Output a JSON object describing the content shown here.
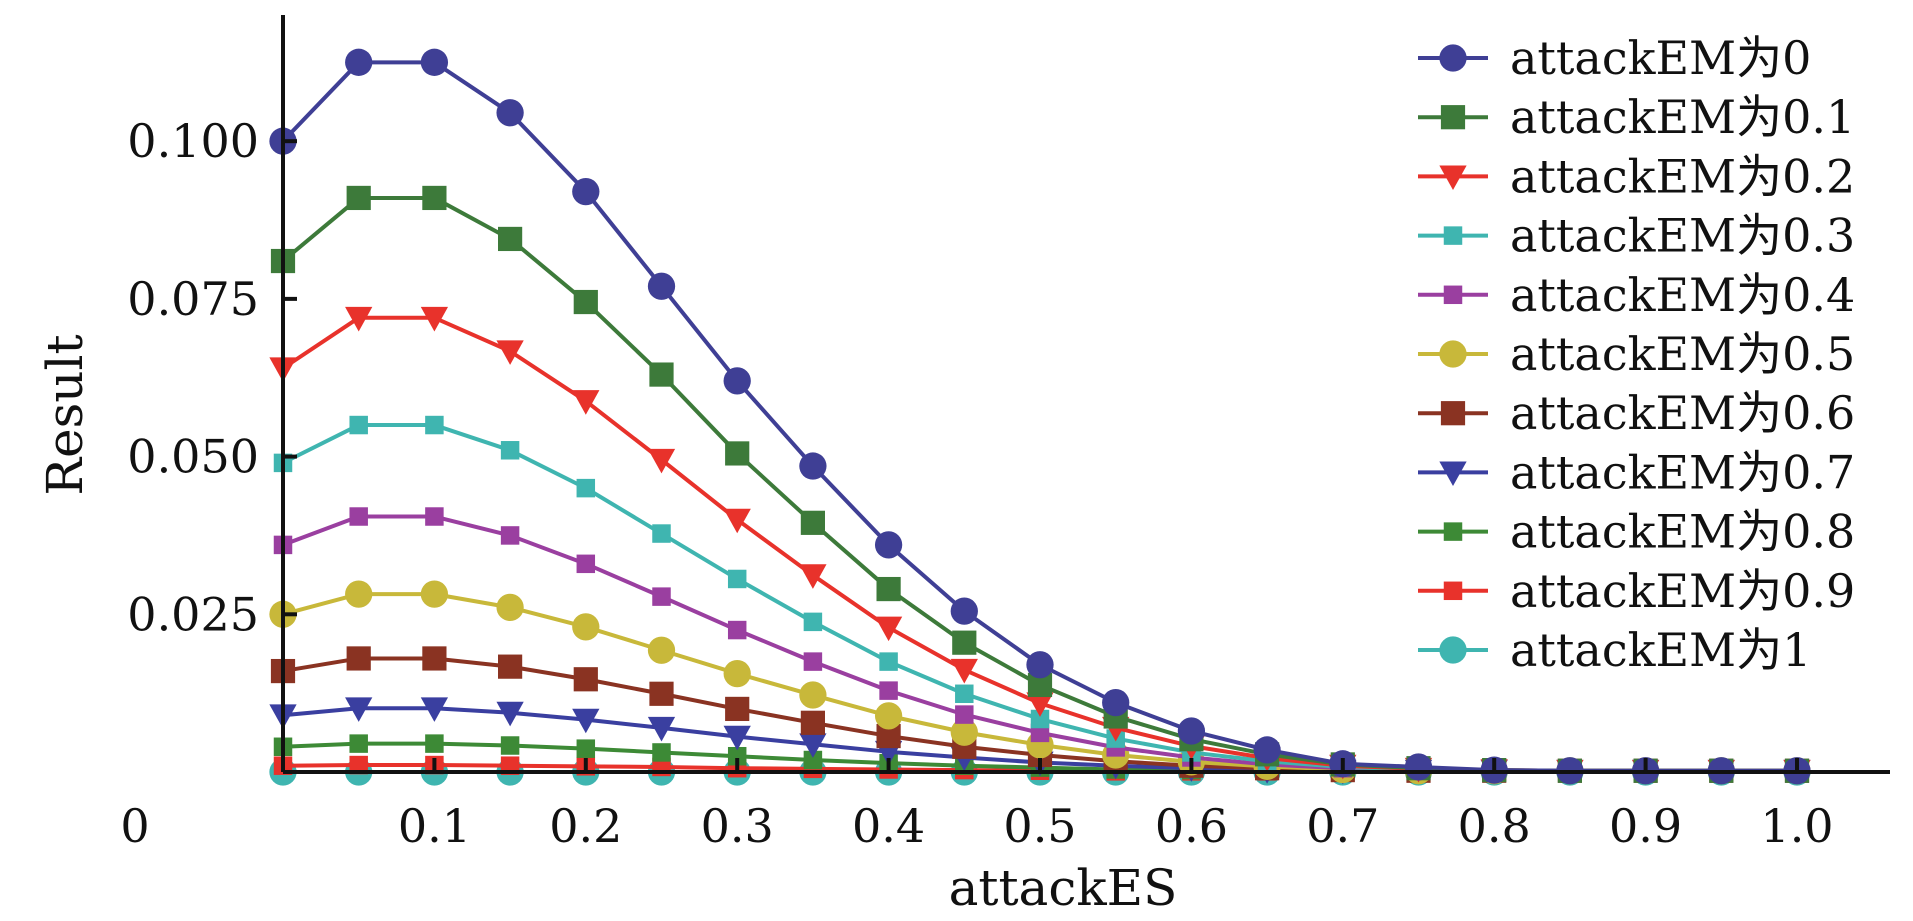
{
  "chart_data": {
    "type": "line",
    "xlabel": "attackES",
    "ylabel": "Result",
    "xlim": [
      0,
      1.05
    ],
    "ylim": [
      0,
      0.12
    ],
    "x_origin_label": "0",
    "x_ticks": [
      {
        "v": 0.1,
        "label": "0.1"
      },
      {
        "v": 0.2,
        "label": "0.2"
      },
      {
        "v": 0.3,
        "label": "0.3"
      },
      {
        "v": 0.4,
        "label": "0.4"
      },
      {
        "v": 0.5,
        "label": "0.5"
      },
      {
        "v": 0.6,
        "label": "0.6"
      },
      {
        "v": 0.7,
        "label": "0.7"
      },
      {
        "v": 0.8,
        "label": "0.8"
      },
      {
        "v": 0.9,
        "label": "0.9"
      },
      {
        "v": 1.0,
        "label": "1.0"
      }
    ],
    "y_ticks": [
      {
        "v": 0.025,
        "label": "0.025"
      },
      {
        "v": 0.05,
        "label": "0.050"
      },
      {
        "v": 0.075,
        "label": "0.075"
      },
      {
        "v": 0.1,
        "label": "0.100"
      }
    ],
    "legend_position": "top-right",
    "grid": false,
    "x": [
      0,
      0.05,
      0.1,
      0.15,
      0.2,
      0.25,
      0.3,
      0.35,
      0.4,
      0.45,
      0.5,
      0.55,
      0.6,
      0.65,
      0.7,
      0.75,
      0.8,
      0.85,
      0.9,
      0.95,
      1.0
    ],
    "series": [
      {
        "name": "attackEM为0",
        "color": "#3f3f95",
        "marker": "circle",
        "values": [
          0.1,
          0.1125,
          0.1125,
          0.1045,
          0.092,
          0.077,
          0.062,
          0.0485,
          0.036,
          0.0255,
          0.017,
          0.011,
          0.0065,
          0.0035,
          0.0013,
          0.0008,
          0.0003,
          0.0002,
          0.0002,
          0.0002,
          0.0002
        ]
      },
      {
        "name": "attackEM为0.1",
        "color": "#3d7a3a",
        "marker": "square",
        "values": [
          0.081,
          0.091,
          0.091,
          0.0845,
          0.0745,
          0.063,
          0.0505,
          0.0395,
          0.029,
          0.0205,
          0.0138,
          0.0088,
          0.0052,
          0.0028,
          0.0012,
          0.0006,
          0.0003,
          0.0002,
          0.0002,
          0.0002,
          0.0002
        ]
      },
      {
        "name": "attackEM为0.2",
        "color": "#e8322b",
        "marker": "triangle-down",
        "values": [
          0.064,
          0.072,
          0.072,
          0.0667,
          0.0588,
          0.0495,
          0.04,
          0.0312,
          0.0229,
          0.0162,
          0.0109,
          0.007,
          0.0041,
          0.0022,
          0.001,
          0.0005,
          0.0003,
          0.0002,
          0.0002,
          0.0002,
          0.0002
        ]
      },
      {
        "name": "attackEM为0.3",
        "color": "#3fb5b0",
        "marker": "square-small",
        "values": [
          0.049,
          0.055,
          0.055,
          0.051,
          0.045,
          0.0378,
          0.0306,
          0.0238,
          0.0175,
          0.0124,
          0.0084,
          0.0053,
          0.0031,
          0.0017,
          0.0008,
          0.0004,
          0.0002,
          0.0002,
          0.0002,
          0.0002,
          0.0002
        ]
      },
      {
        "name": "attackEM为0.4",
        "color": "#9a3fa0",
        "marker": "square-small",
        "values": [
          0.036,
          0.0405,
          0.0405,
          0.0375,
          0.033,
          0.0278,
          0.0225,
          0.0175,
          0.0129,
          0.0091,
          0.0062,
          0.0039,
          0.0023,
          0.0012,
          0.0006,
          0.0003,
          0.0002,
          0.0002,
          0.0002,
          0.0002,
          0.0002
        ]
      },
      {
        "name": "attackEM为0.5",
        "color": "#c8b83a",
        "marker": "circle",
        "values": [
          0.025,
          0.0282,
          0.0282,
          0.0261,
          0.023,
          0.0193,
          0.0156,
          0.0122,
          0.0089,
          0.0063,
          0.0043,
          0.0027,
          0.0016,
          0.0009,
          0.0004,
          0.0002,
          0.0002,
          0.0002,
          0.0002,
          0.0002,
          0.0002
        ]
      },
      {
        "name": "attackEM为0.6",
        "color": "#8a3322",
        "marker": "square",
        "values": [
          0.016,
          0.018,
          0.018,
          0.0167,
          0.0147,
          0.0124,
          0.01,
          0.0078,
          0.0057,
          0.004,
          0.0027,
          0.0017,
          0.001,
          0.0006,
          0.0003,
          0.0002,
          0.0002,
          0.0002,
          0.0002,
          0.0002,
          0.0002
        ]
      },
      {
        "name": "attackEM为0.7",
        "color": "#3a3fa0",
        "marker": "triangle-down",
        "values": [
          0.009,
          0.0101,
          0.0101,
          0.0094,
          0.0083,
          0.007,
          0.0056,
          0.0044,
          0.0032,
          0.0023,
          0.0015,
          0.001,
          0.0006,
          0.0003,
          0.0002,
          0.0002,
          0.0002,
          0.0002,
          0.0002,
          0.0002,
          0.0002
        ]
      },
      {
        "name": "attackEM为0.8",
        "color": "#3d8a36",
        "marker": "square-small",
        "values": [
          0.004,
          0.0045,
          0.0045,
          0.0042,
          0.0037,
          0.0031,
          0.0025,
          0.0019,
          0.0014,
          0.001,
          0.0007,
          0.0004,
          0.0003,
          0.0002,
          0.0001,
          0.0001,
          0.0001,
          0.0001,
          0.0001,
          0.0001,
          0.0001
        ]
      },
      {
        "name": "attackEM为0.9",
        "color": "#e8322b",
        "marker": "square-small",
        "values": [
          0.001,
          0.0011,
          0.0011,
          0.001,
          0.0009,
          0.0008,
          0.0006,
          0.0005,
          0.0004,
          0.0003,
          0.0002,
          0.0001,
          0.0001,
          0.0001,
          0.0001,
          0.0001,
          0.0001,
          0.0001,
          0.0001,
          0.0001,
          0.0001
        ]
      },
      {
        "name": "attackEM为1",
        "color": "#3fb5b0",
        "marker": "circle",
        "values": [
          0,
          0,
          0,
          0,
          0,
          0,
          0,
          0,
          0,
          0,
          0,
          0,
          0,
          0,
          0,
          0,
          0,
          0,
          0,
          0,
          0
        ]
      }
    ]
  }
}
